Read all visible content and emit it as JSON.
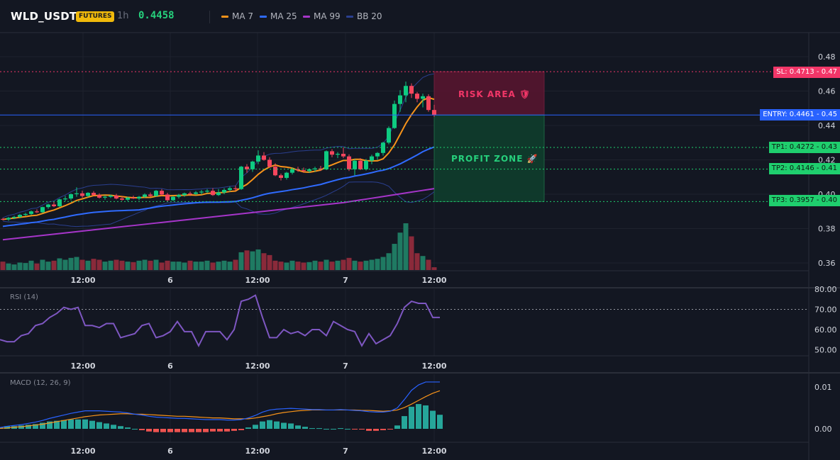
{
  "header": {
    "symbol": "WLD_USDT",
    "badge": "FUTURES",
    "timeframe": "1h",
    "price": "0.4458",
    "legend": [
      {
        "label": "MA 7",
        "color": "#f7931a"
      },
      {
        "label": "MA 25",
        "color": "#2f6bff"
      },
      {
        "label": "MA 99",
        "color": "#a635c9"
      },
      {
        "label": "BB 20",
        "color": "#2a3f8f"
      }
    ]
  },
  "main_axis": {
    "labels": [
      "0.48",
      "0.46",
      "0.44",
      "0.42",
      "0.40",
      "0.38",
      "0.36"
    ],
    "values": [
      0.48,
      0.46,
      0.44,
      0.42,
      0.4,
      0.38,
      0.36
    ]
  },
  "time_axis": {
    "labels": [
      "12:00",
      "6",
      "12:00",
      "7",
      "12:00"
    ]
  },
  "levels": {
    "sl": {
      "label": "SL: 0.4713 - 0.47",
      "value": 0.4713,
      "color": "#f23668"
    },
    "entry": {
      "label": "ENTRY: 0.4461 - 0.45",
      "value": 0.4461,
      "color": "#2962ff"
    },
    "tp1": {
      "label": "TP1: 0.4272 - 0.43",
      "value": 0.4272,
      "color": "#1fcf6e"
    },
    "tp2": {
      "label": "TP2: 0.4146 - 0.41",
      "value": 0.4146,
      "color": "#1fcf6e"
    },
    "tp3": {
      "label": "TP3: 0.3957 - 0.40",
      "value": 0.3957,
      "color": "#1fcf6e"
    }
  },
  "zones": {
    "risk": "RISK AREA 🛡",
    "profit": "PROFIT ZONE 🚀"
  },
  "rsi": {
    "title": "RSI (14)",
    "labels": [
      "80.00",
      "70.00",
      "60.00",
      "50.00"
    ],
    "values": [
      55,
      54,
      54,
      57,
      58,
      62,
      63,
      66,
      68,
      71,
      70,
      71,
      62,
      62,
      61,
      63,
      63,
      56,
      57,
      58,
      62,
      63,
      56,
      57,
      59,
      64,
      59,
      59,
      52,
      59,
      59,
      59,
      55,
      60,
      74,
      75,
      77,
      66,
      56,
      56,
      60,
      58,
      59,
      57,
      60,
      60,
      57,
      64,
      62,
      60,
      59,
      52,
      58,
      53,
      55,
      57,
      63,
      71,
      74,
      73,
      73,
      66,
      66
    ]
  },
  "macd": {
    "title": "MACD (12, 26, 9)",
    "labels": [
      "0.01",
      "0.00"
    ],
    "macd": [
      0.0003,
      0.0006,
      0.0008,
      0.001,
      0.0013,
      0.0016,
      0.002,
      0.0025,
      0.0029,
      0.0033,
      0.0037,
      0.004,
      0.0043,
      0.0043,
      0.0043,
      0.0042,
      0.0041,
      0.004,
      0.0038,
      0.0035,
      0.0033,
      0.003,
      0.0028,
      0.0027,
      0.0026,
      0.0025,
      0.0025,
      0.0024,
      0.0023,
      0.0022,
      0.0022,
      0.0022,
      0.0021,
      0.0021,
      0.0022,
      0.0026,
      0.0032,
      0.004,
      0.0045,
      0.0047,
      0.0048,
      0.0049,
      0.0048,
      0.0047,
      0.0046,
      0.0046,
      0.0045,
      0.0045,
      0.0046,
      0.0045,
      0.0044,
      0.0043,
      0.0041,
      0.004,
      0.004,
      0.0042,
      0.005,
      0.007,
      0.0092,
      0.0105,
      0.0112,
      0.0112,
      0.0112
    ],
    "signal": [
      0.0001,
      0.0002,
      0.0004,
      0.0005,
      0.0007,
      0.0009,
      0.0011,
      0.0014,
      0.0017,
      0.002,
      0.0023,
      0.0026,
      0.0029,
      0.0031,
      0.0033,
      0.0034,
      0.0035,
      0.0036,
      0.0036,
      0.0035,
      0.0035,
      0.0034,
      0.0033,
      0.0032,
      0.0031,
      0.003,
      0.003,
      0.0029,
      0.0028,
      0.0027,
      0.0026,
      0.0026,
      0.0025,
      0.0024,
      0.0024,
      0.0024,
      0.0026,
      0.0029,
      0.0032,
      0.0036,
      0.0039,
      0.0041,
      0.0043,
      0.0044,
      0.0045,
      0.0045,
      0.0045,
      0.0045,
      0.0045,
      0.0045,
      0.0045,
      0.0044,
      0.0044,
      0.0043,
      0.0042,
      0.0043,
      0.0045,
      0.0051,
      0.0059,
      0.0068,
      0.0077,
      0.0085,
      0.0091
    ]
  },
  "candles": [
    [
      0.3856,
      0.3862,
      0.3848,
      0.3853
    ],
    [
      0.3853,
      0.3868,
      0.3845,
      0.3862
    ],
    [
      0.3862,
      0.3875,
      0.3855,
      0.3868
    ],
    [
      0.3868,
      0.3886,
      0.386,
      0.388
    ],
    [
      0.388,
      0.3892,
      0.3872,
      0.3885
    ],
    [
      0.3885,
      0.3905,
      0.3878,
      0.39
    ],
    [
      0.39,
      0.3912,
      0.389,
      0.3895
    ],
    [
      0.3895,
      0.3928,
      0.389,
      0.3925
    ],
    [
      0.3925,
      0.3945,
      0.3915,
      0.394
    ],
    [
      0.394,
      0.3955,
      0.3925,
      0.393
    ],
    [
      0.393,
      0.3975,
      0.3925,
      0.397
    ],
    [
      0.397,
      0.399,
      0.396,
      0.3975
    ],
    [
      0.3975,
      0.4005,
      0.3965,
      0.4
    ],
    [
      0.4,
      0.404,
      0.3985,
      0.4005
    ],
    [
      0.4005,
      0.402,
      0.398,
      0.399
    ],
    [
      0.399,
      0.4012,
      0.3982,
      0.4008
    ],
    [
      0.4008,
      0.4018,
      0.399,
      0.3995
    ],
    [
      0.3995,
      0.4005,
      0.3975,
      0.398
    ],
    [
      0.398,
      0.3995,
      0.3968,
      0.3985
    ],
    [
      0.3985,
      0.3998,
      0.3978,
      0.3992
    ],
    [
      0.3992,
      0.4002,
      0.397,
      0.3975
    ],
    [
      0.3975,
      0.3988,
      0.3962,
      0.3968
    ],
    [
      0.3968,
      0.3985,
      0.396,
      0.398
    ],
    [
      0.398,
      0.3992,
      0.3972,
      0.3975
    ],
    [
      0.3975,
      0.399,
      0.3965,
      0.3985
    ],
    [
      0.3985,
      0.4005,
      0.3978,
      0.3998
    ],
    [
      0.3998,
      0.401,
      0.3985,
      0.399
    ],
    [
      0.399,
      0.4025,
      0.3985,
      0.402
    ],
    [
      0.402,
      0.403,
      0.399,
      0.3998
    ],
    [
      0.3998,
      0.4008,
      0.3955,
      0.3965
    ],
    [
      0.3965,
      0.399,
      0.396,
      0.3985
    ],
    [
      0.3985,
      0.4002,
      0.3975,
      0.3995
    ],
    [
      0.3995,
      0.401,
      0.3985,
      0.4005
    ],
    [
      0.4005,
      0.4015,
      0.399,
      0.4002
    ],
    [
      0.4002,
      0.4018,
      0.3995,
      0.401
    ],
    [
      0.401,
      0.4025,
      0.3998,
      0.4015
    ],
    [
      0.4015,
      0.403,
      0.4005,
      0.402
    ],
    [
      0.402,
      0.4035,
      0.399,
      0.3995
    ],
    [
      0.3995,
      0.403,
      0.399,
      0.401
    ],
    [
      0.401,
      0.4035,
      0.4,
      0.4025
    ],
    [
      0.4025,
      0.4045,
      0.4015,
      0.4035
    ],
    [
      0.4035,
      0.405,
      0.402,
      0.403
    ],
    [
      0.403,
      0.4165,
      0.4025,
      0.416
    ],
    [
      0.416,
      0.4175,
      0.4125,
      0.4145
    ],
    [
      0.4145,
      0.4195,
      0.413,
      0.419
    ],
    [
      0.419,
      0.4255,
      0.4175,
      0.4225
    ],
    [
      0.4225,
      0.4245,
      0.4195,
      0.42
    ],
    [
      0.42,
      0.4215,
      0.4155,
      0.416
    ],
    [
      0.416,
      0.418,
      0.4105,
      0.411
    ],
    [
      0.411,
      0.412,
      0.408,
      0.4095
    ],
    [
      0.4095,
      0.413,
      0.4085,
      0.4125
    ],
    [
      0.4125,
      0.4155,
      0.4115,
      0.4145
    ],
    [
      0.4145,
      0.416,
      0.413,
      0.414
    ],
    [
      0.414,
      0.4155,
      0.4125,
      0.4135
    ],
    [
      0.4135,
      0.415,
      0.4125,
      0.4145
    ],
    [
      0.4145,
      0.416,
      0.413,
      0.415
    ],
    [
      0.415,
      0.4165,
      0.4135,
      0.4145
    ],
    [
      0.4145,
      0.4255,
      0.414,
      0.425
    ],
    [
      0.425,
      0.4262,
      0.4215,
      0.423
    ],
    [
      0.423,
      0.4245,
      0.421,
      0.4235
    ],
    [
      0.4235,
      0.4272,
      0.421,
      0.422
    ],
    [
      0.422,
      0.4232,
      0.4135,
      0.4145
    ],
    [
      0.4145,
      0.4205,
      0.411,
      0.4195
    ],
    [
      0.4195,
      0.421,
      0.414,
      0.4145
    ],
    [
      0.4145,
      0.4205,
      0.4138,
      0.4195
    ],
    [
      0.4195,
      0.423,
      0.4175,
      0.422
    ],
    [
      0.422,
      0.4245,
      0.42,
      0.424
    ],
    [
      0.424,
      0.4305,
      0.4225,
      0.43
    ],
    [
      0.43,
      0.4395,
      0.429,
      0.4385
    ],
    [
      0.4385,
      0.4545,
      0.438,
      0.4525
    ],
    [
      0.4525,
      0.4605,
      0.448,
      0.4575
    ],
    [
      0.4575,
      0.4655,
      0.4535,
      0.463
    ],
    [
      0.463,
      0.4645,
      0.456,
      0.4585
    ],
    [
      0.4585,
      0.4595,
      0.4535,
      0.4555
    ],
    [
      0.4555,
      0.4585,
      0.4505,
      0.457
    ],
    [
      0.457,
      0.4582,
      0.448,
      0.449
    ],
    [
      0.449,
      0.452,
      0.445,
      0.446
    ]
  ],
  "volumes": [
    0.18,
    0.14,
    0.12,
    0.16,
    0.15,
    0.2,
    0.14,
    0.22,
    0.18,
    0.2,
    0.25,
    0.22,
    0.26,
    0.28,
    0.22,
    0.2,
    0.24,
    0.22,
    0.18,
    0.2,
    0.22,
    0.2,
    0.18,
    0.17,
    0.2,
    0.22,
    0.2,
    0.22,
    0.16,
    0.2,
    0.18,
    0.18,
    0.16,
    0.2,
    0.18,
    0.18,
    0.2,
    0.16,
    0.18,
    0.2,
    0.18,
    0.22,
    0.38,
    0.42,
    0.4,
    0.44,
    0.36,
    0.32,
    0.2,
    0.18,
    0.16,
    0.2,
    0.18,
    0.16,
    0.17,
    0.2,
    0.18,
    0.22,
    0.18,
    0.2,
    0.22,
    0.26,
    0.2,
    0.18,
    0.2,
    0.22,
    0.24,
    0.28,
    0.36,
    0.56,
    0.8,
    1.0,
    0.72,
    0.36,
    0.3,
    0.22,
    0.06
  ]
}
